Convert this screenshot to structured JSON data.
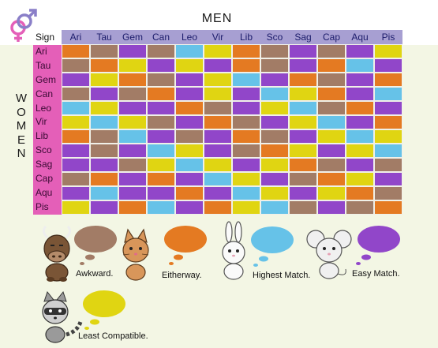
{
  "header": {
    "men_label": "MEN",
    "women_label": "WOMEN",
    "sign_label": "Sign"
  },
  "signs": [
    "Ari",
    "Tau",
    "Gem",
    "Can",
    "Leo",
    "Vir",
    "Lib",
    "Sco",
    "Sag",
    "Cap",
    "Aqu",
    "Pis"
  ],
  "legend": [
    {
      "key": "A",
      "label": "Awkward.",
      "color": "#a27c66",
      "animal": "ox"
    },
    {
      "key": "E",
      "label": "Eitherway.",
      "color": "#e47a22",
      "animal": "cat"
    },
    {
      "key": "H",
      "label": "Highest Match.",
      "color": "#66c2e8",
      "animal": "rabbit"
    },
    {
      "key": "M",
      "label": "Easy Match.",
      "color": "#9146c9",
      "animal": "mouse"
    },
    {
      "key": "L",
      "label": "Least Compatible.",
      "color": "#e0d512",
      "animal": "raccoon"
    }
  ],
  "colors": {
    "A": "#a27c66",
    "E": "#e47a22",
    "H": "#66c2e8",
    "M": "#9146c9",
    "L": "#e0d512"
  },
  "grid": [
    [
      "E",
      "A",
      "M",
      "A",
      "H",
      "L",
      "E",
      "A",
      "M",
      "A",
      "M",
      "L"
    ],
    [
      "A",
      "E",
      "L",
      "M",
      "L",
      "M",
      "E",
      "A",
      "M",
      "E",
      "H",
      "M"
    ],
    [
      "M",
      "L",
      "E",
      "A",
      "M",
      "L",
      "H",
      "M",
      "E",
      "A",
      "M",
      "E"
    ],
    [
      "A",
      "M",
      "A",
      "E",
      "M",
      "L",
      "M",
      "H",
      "L",
      "E",
      "M",
      "H"
    ],
    [
      "H",
      "L",
      "M",
      "M",
      "E",
      "A",
      "M",
      "L",
      "H",
      "A",
      "E",
      "M"
    ],
    [
      "L",
      "H",
      "L",
      "A",
      "M",
      "E",
      "A",
      "M",
      "L",
      "H",
      "M",
      "E"
    ],
    [
      "E",
      "A",
      "H",
      "M",
      "A",
      "M",
      "E",
      "A",
      "M",
      "L",
      "H",
      "L"
    ],
    [
      "M",
      "A",
      "M",
      "H",
      "L",
      "M",
      "A",
      "E",
      "L",
      "M",
      "L",
      "H"
    ],
    [
      "M",
      "M",
      "A",
      "L",
      "H",
      "L",
      "M",
      "L",
      "E",
      "A",
      "M",
      "A"
    ],
    [
      "A",
      "E",
      "M",
      "E",
      "M",
      "H",
      "L",
      "M",
      "A",
      "E",
      "L",
      "M"
    ],
    [
      "M",
      "H",
      "M",
      "M",
      "E",
      "M",
      "H",
      "L",
      "M",
      "L",
      "E",
      "A"
    ],
    [
      "L",
      "M",
      "E",
      "H",
      "M",
      "E",
      "L",
      "H",
      "A",
      "M",
      "A",
      "E"
    ]
  ]
}
